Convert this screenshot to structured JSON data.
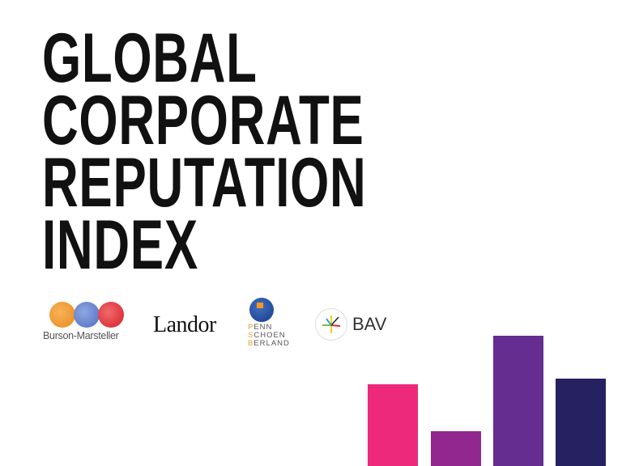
{
  "title": {
    "lines": [
      "GLOBAL",
      "CORPORATE",
      "REPUTATION",
      "INDEX"
    ]
  },
  "logos": {
    "burson_marsteller": "Burson-Marsteller",
    "landor": "Landor",
    "psb": {
      "lines": [
        [
          "P",
          "ENN"
        ],
        [
          "S",
          "CHOEN"
        ],
        [
          "B",
          "ERLAND"
        ]
      ]
    },
    "bav": "BAV"
  },
  "decor_bars": {
    "colors": [
      "#ec297b",
      "#92278f",
      "#662d91",
      "#262262"
    ],
    "relative_heights": [
      0.63,
      0.27,
      1.0,
      0.67
    ]
  }
}
